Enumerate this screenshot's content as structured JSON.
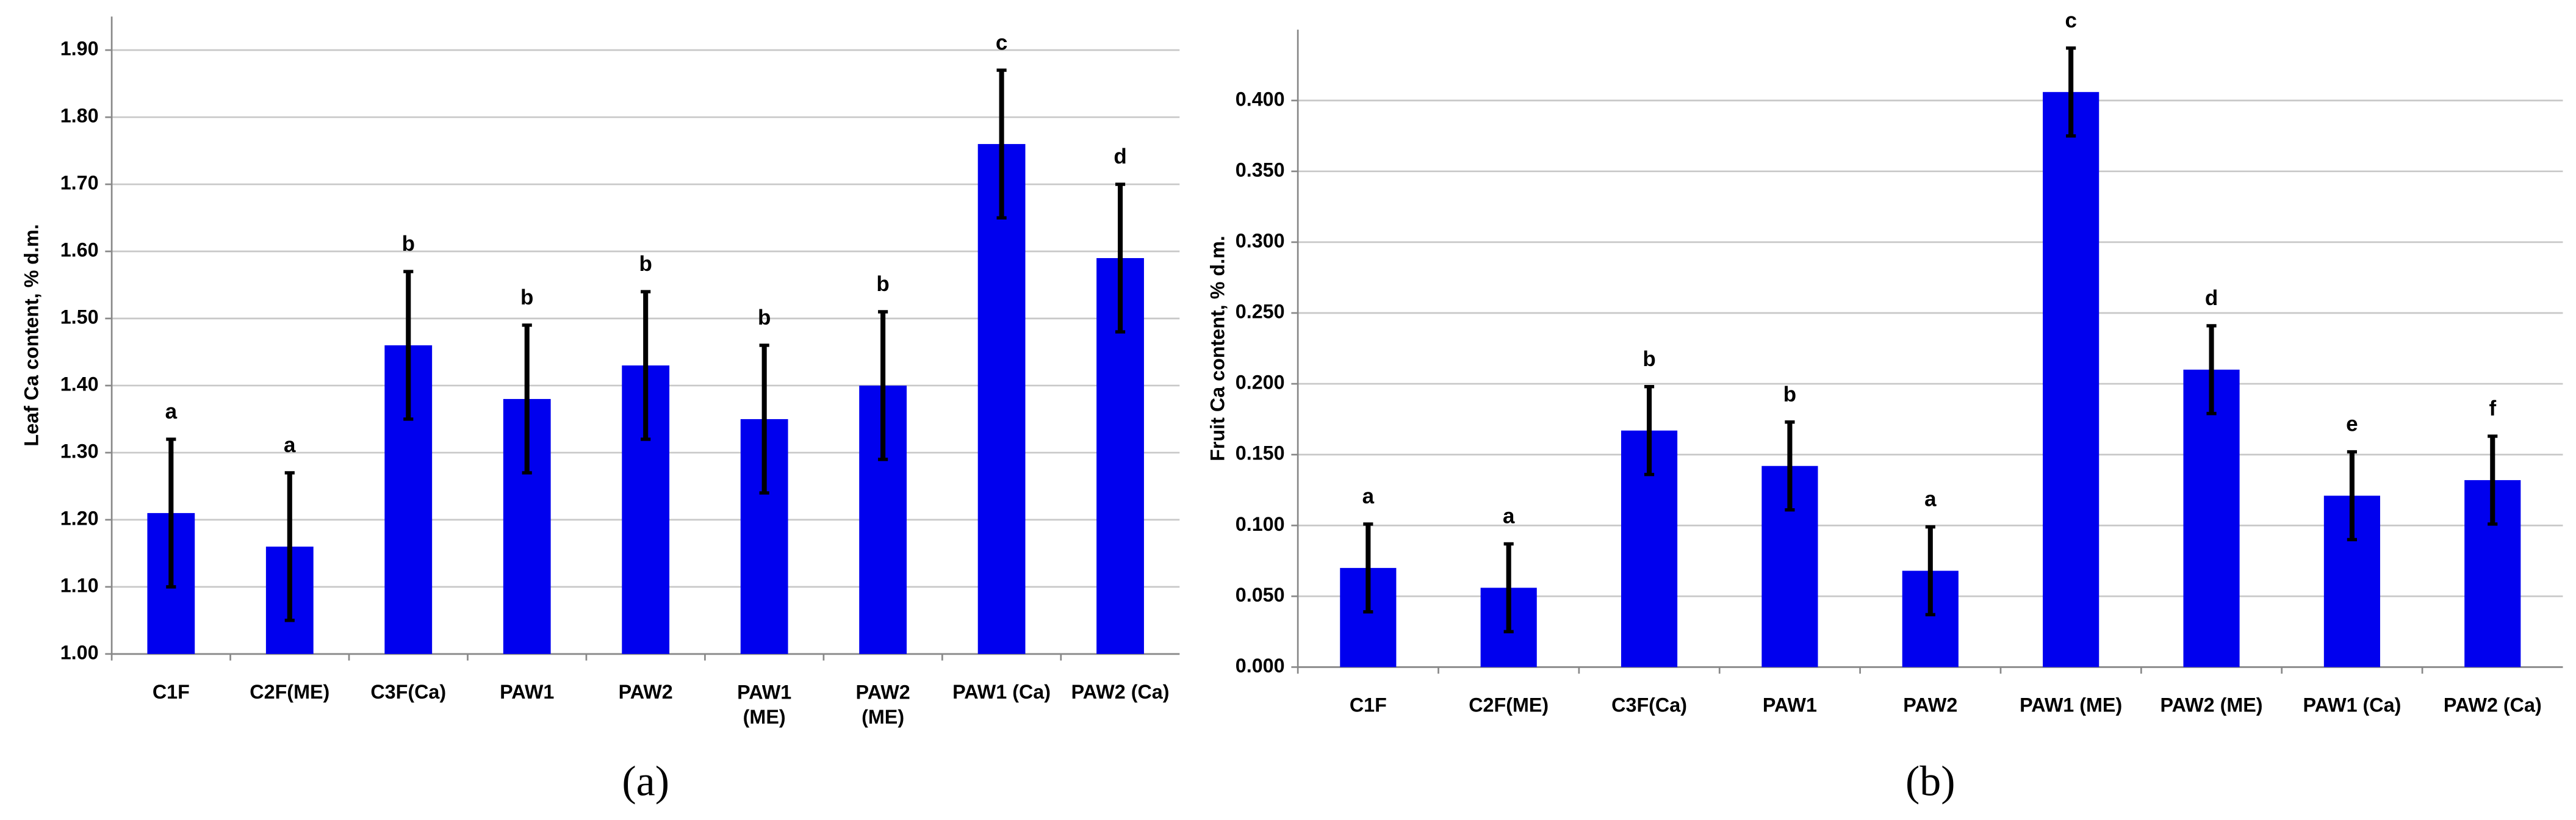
{
  "chart_data": [
    {
      "type": "bar",
      "ylabel": "Leaf Ca content, % d.m.",
      "caption": "(a)",
      "categories": [
        "C1F",
        "C2F(ME)",
        "C3F(Ca)",
        "PAW1",
        "PAW2",
        "PAW1\n(ME)",
        "PAW2\n(ME)",
        "PAW1 (Ca)",
        "PAW2 (Ca)"
      ],
      "values": [
        1.21,
        1.16,
        1.46,
        1.38,
        1.43,
        1.35,
        1.4,
        1.76,
        1.59
      ],
      "errors": [
        0.11,
        0.11,
        0.11,
        0.11,
        0.11,
        0.11,
        0.11,
        0.11,
        0.11
      ],
      "annotations": [
        "a",
        "a",
        "b",
        "b",
        "b",
        "b",
        "b",
        "c",
        "d"
      ],
      "color": "#0000ee",
      "grid": true,
      "ylim": [
        1.0,
        1.95
      ],
      "yticks": [
        {
          "value": 1.0,
          "label": "1.00"
        },
        {
          "value": 1.1,
          "label": "1.10"
        },
        {
          "value": 1.2,
          "label": "1.20"
        },
        {
          "value": 1.3,
          "label": "1.30"
        },
        {
          "value": 1.4,
          "label": "1.40"
        },
        {
          "value": 1.5,
          "label": "1.50"
        },
        {
          "value": 1.6,
          "label": "1.60"
        },
        {
          "value": 1.7,
          "label": "1.70"
        },
        {
          "value": 1.8,
          "label": "1.80"
        },
        {
          "value": 1.9,
          "label": "1.90"
        }
      ]
    },
    {
      "type": "bar",
      "ylabel": "Fruit Ca content, % d.m.",
      "caption": "(b)",
      "categories": [
        "C1F",
        "C2F(ME)",
        "C3F(Ca)",
        "PAW1",
        "PAW2",
        "PAW1 (ME)",
        "PAW2 (ME)",
        "PAW1 (Ca)",
        "PAW2 (Ca)"
      ],
      "values": [
        0.07,
        0.056,
        0.167,
        0.142,
        0.068,
        0.406,
        0.21,
        0.121,
        0.132
      ],
      "errors": [
        0.031,
        0.031,
        0.031,
        0.031,
        0.031,
        0.031,
        0.031,
        0.031,
        0.031
      ],
      "annotations": [
        "a",
        "a",
        "b",
        "b",
        "a",
        "c",
        "d",
        "e",
        "f"
      ],
      "color": "#0000ee",
      "grid": true,
      "ylim": [
        0,
        0.45
      ],
      "yticks": [
        {
          "value": 0,
          "label": "0.000"
        },
        {
          "value": 0.05,
          "label": "0.050"
        },
        {
          "value": 0.1,
          "label": "0.100"
        },
        {
          "value": 0.15,
          "label": "0.150"
        },
        {
          "value": 0.2,
          "label": "0.200"
        },
        {
          "value": 0.25,
          "label": "0.250"
        },
        {
          "value": 0.3,
          "label": "0.300"
        },
        {
          "value": 0.35,
          "label": "0.350"
        },
        {
          "value": 0.4,
          "label": "0.400"
        }
      ]
    }
  ]
}
